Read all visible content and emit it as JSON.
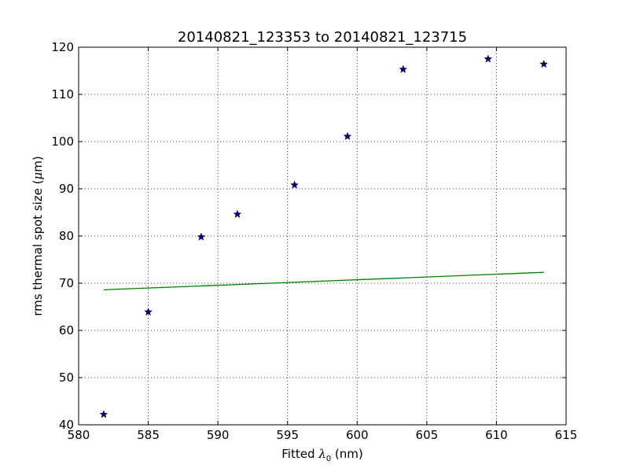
{
  "chart_data": {
    "type": "scatter",
    "title": "20140821_123353 to 20140821_123715",
    "xlabel": {
      "prefix": "Fitted ",
      "symbol": "λ",
      "subscript": "0",
      "suffix": " (nm)"
    },
    "ylabel": {
      "prefix": "rms thermal spot size (",
      "symbol": "μ",
      "suffix": "m)"
    },
    "xlim": [
      580,
      615
    ],
    "ylim": [
      40,
      120
    ],
    "xticks": [
      580,
      585,
      590,
      595,
      600,
      605,
      610,
      615
    ],
    "yticks": [
      40,
      50,
      60,
      70,
      80,
      90,
      100,
      110,
      120
    ],
    "grid": true,
    "series": [
      {
        "kind": "scatter",
        "marker": "star",
        "color": "#000080",
        "x": [
          581.8,
          585.0,
          588.8,
          591.4,
          595.5,
          599.3,
          603.3,
          609.4,
          613.4
        ],
        "y": [
          42.2,
          63.9,
          79.8,
          84.6,
          90.8,
          101.1,
          115.3,
          117.5,
          116.4
        ]
      },
      {
        "kind": "line",
        "color": "#008000",
        "x": [
          581.8,
          613.4
        ],
        "y": [
          68.6,
          72.3
        ]
      }
    ]
  }
}
